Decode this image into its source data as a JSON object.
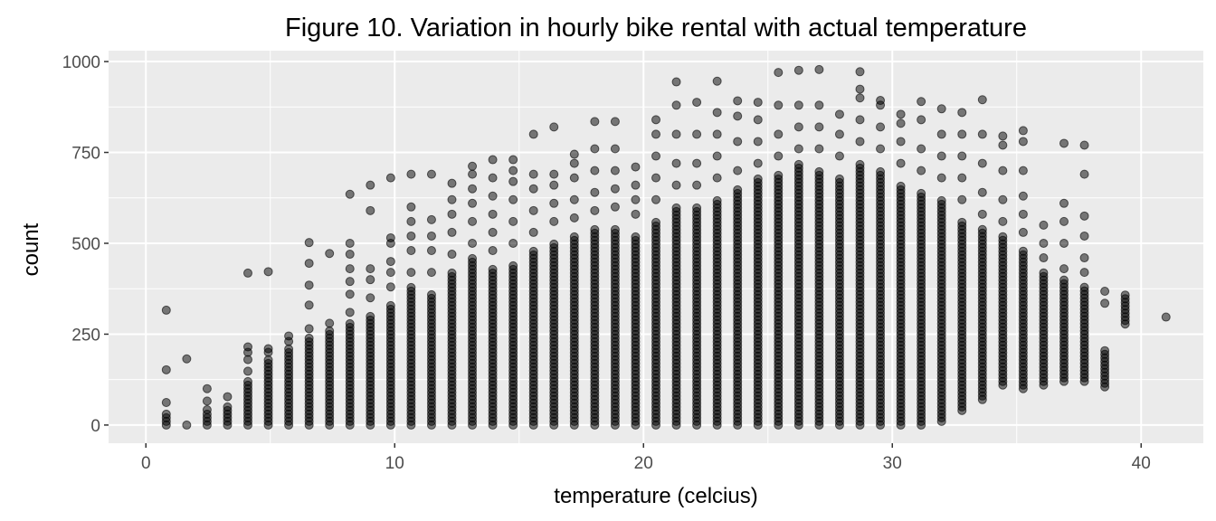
{
  "chart_data": {
    "type": "scatter",
    "title": "Figure 10. Variation in hourly bike rental with actual temperature",
    "xlabel": "temperature (celcius)",
    "ylabel": "count",
    "xlim": [
      -1.5,
      42.5
    ],
    "ylim": [
      -50,
      1030
    ],
    "x_ticks": [
      0,
      10,
      20,
      30,
      40
    ],
    "x_tick_labels": [
      "0",
      "10",
      "20",
      "30",
      "40"
    ],
    "y_ticks": [
      0,
      250,
      500,
      750,
      1000
    ],
    "y_tick_labels": [
      "0",
      "250",
      "500",
      "750",
      "1000"
    ],
    "grid": true,
    "legend": "none",
    "point_color": "#000000",
    "point_alpha": 0.5,
    "panel_background": "#ebebeb",
    "grid_color": "#ffffff",
    "columns": [
      {
        "x": 0.82,
        "min": 0,
        "max": 30,
        "outliers": [
          62,
          152,
          316
        ]
      },
      {
        "x": 1.64,
        "min": 0,
        "max": 8,
        "outliers": [
          182
        ]
      },
      {
        "x": 2.46,
        "min": 0,
        "max": 30,
        "outliers": [
          42,
          66,
          100
        ]
      },
      {
        "x": 3.28,
        "min": 0,
        "max": 55,
        "outliers": [
          78
        ]
      },
      {
        "x": 4.1,
        "min": 0,
        "max": 120,
        "outliers": [
          148,
          180,
          200,
          215,
          418
        ]
      },
      {
        "x": 4.92,
        "min": 0,
        "max": 180,
        "outliers": [
          200,
          210,
          422
        ]
      },
      {
        "x": 5.74,
        "min": 0,
        "max": 210,
        "outliers": [
          230,
          245
        ]
      },
      {
        "x": 6.56,
        "min": 0,
        "max": 240,
        "outliers": [
          265,
          330,
          385,
          445,
          502
        ]
      },
      {
        "x": 7.38,
        "min": 0,
        "max": 260,
        "outliers": [
          280,
          472
        ]
      },
      {
        "x": 8.2,
        "min": 0,
        "max": 280,
        "outliers": [
          310,
          360,
          395,
          430,
          470,
          500,
          635
        ]
      },
      {
        "x": 9.02,
        "min": 0,
        "max": 300,
        "outliers": [
          350,
          400,
          430,
          590,
          660
        ]
      },
      {
        "x": 9.84,
        "min": 0,
        "max": 330,
        "outliers": [
          380,
          420,
          450,
          500,
          515,
          680
        ]
      },
      {
        "x": 10.66,
        "min": 0,
        "max": 380,
        "outliers": [
          420,
          480,
          520,
          560,
          600,
          690
        ]
      },
      {
        "x": 11.48,
        "min": 0,
        "max": 360,
        "outliers": [
          420,
          480,
          520,
          565,
          690
        ]
      },
      {
        "x": 12.3,
        "min": 0,
        "max": 420,
        "outliers": [
          470,
          530,
          580,
          620,
          665
        ]
      },
      {
        "x": 13.12,
        "min": 0,
        "max": 460,
        "outliers": [
          500,
          560,
          610,
          650,
          690,
          712
        ]
      },
      {
        "x": 13.94,
        "min": 0,
        "max": 430,
        "outliers": [
          480,
          530,
          580,
          630,
          680,
          730
        ]
      },
      {
        "x": 14.76,
        "min": 0,
        "max": 440,
        "outliers": [
          500,
          560,
          620,
          670,
          700,
          730
        ]
      },
      {
        "x": 15.58,
        "min": 0,
        "max": 480,
        "outliers": [
          530,
          590,
          650,
          690,
          800
        ]
      },
      {
        "x": 16.4,
        "min": 0,
        "max": 500,
        "outliers": [
          560,
          610,
          660,
          690,
          820
        ]
      },
      {
        "x": 17.22,
        "min": 0,
        "max": 520,
        "outliers": [
          570,
          620,
          680,
          720,
          745
        ]
      },
      {
        "x": 18.04,
        "min": 0,
        "max": 540,
        "outliers": [
          590,
          640,
          700,
          760,
          835
        ]
      },
      {
        "x": 18.86,
        "min": 0,
        "max": 540,
        "outliers": [
          600,
          650,
          700,
          760,
          835
        ]
      },
      {
        "x": 19.68,
        "min": 0,
        "max": 520,
        "outliers": [
          580,
          620,
          660,
          710
        ]
      },
      {
        "x": 20.5,
        "min": 0,
        "max": 560,
        "outliers": [
          620,
          680,
          740,
          800,
          840
        ]
      },
      {
        "x": 21.32,
        "min": 0,
        "max": 600,
        "outliers": [
          660,
          720,
          800,
          880,
          944
        ]
      },
      {
        "x": 22.14,
        "min": 0,
        "max": 600,
        "outliers": [
          660,
          720,
          800,
          888
        ]
      },
      {
        "x": 22.96,
        "min": 0,
        "max": 620,
        "outliers": [
          680,
          740,
          800,
          860,
          946
        ]
      },
      {
        "x": 23.78,
        "min": 0,
        "max": 650,
        "outliers": [
          700,
          780,
          850,
          892
        ]
      },
      {
        "x": 24.6,
        "min": 0,
        "max": 680,
        "outliers": [
          720,
          780,
          840,
          888
        ]
      },
      {
        "x": 25.42,
        "min": 0,
        "max": 690,
        "outliers": [
          740,
          800,
          880,
          970
        ]
      },
      {
        "x": 26.24,
        "min": 0,
        "max": 720,
        "outliers": [
          760,
          820,
          880,
          976
        ]
      },
      {
        "x": 27.06,
        "min": 0,
        "max": 700,
        "outliers": [
          760,
          820,
          880,
          978
        ]
      },
      {
        "x": 27.88,
        "min": 0,
        "max": 680,
        "outliers": [
          740,
          800,
          855
        ]
      },
      {
        "x": 28.7,
        "min": 0,
        "max": 720,
        "outliers": [
          780,
          840,
          900,
          924,
          972
        ]
      },
      {
        "x": 29.52,
        "min": 0,
        "max": 700,
        "outliers": [
          760,
          820,
          880,
          893
        ]
      },
      {
        "x": 30.34,
        "min": 0,
        "max": 660,
        "outliers": [
          720,
          780,
          830,
          855
        ]
      },
      {
        "x": 31.16,
        "min": 0,
        "max": 640,
        "outliers": [
          700,
          760,
          840,
          890
        ]
      },
      {
        "x": 31.98,
        "min": 10,
        "max": 620,
        "outliers": [
          680,
          740,
          800,
          870
        ]
      },
      {
        "x": 32.8,
        "min": 40,
        "max": 560,
        "outliers": [
          620,
          680,
          740,
          800,
          860
        ]
      },
      {
        "x": 33.62,
        "min": 70,
        "max": 540,
        "outliers": [
          580,
          640,
          720,
          800,
          895
        ]
      },
      {
        "x": 34.44,
        "min": 110,
        "max": 520,
        "outliers": [
          560,
          620,
          700,
          770,
          795
        ]
      },
      {
        "x": 35.26,
        "min": 100,
        "max": 480,
        "outliers": [
          530,
          580,
          630,
          700,
          780,
          810
        ]
      },
      {
        "x": 36.08,
        "min": 110,
        "max": 420,
        "outliers": [
          460,
          500,
          550
        ]
      },
      {
        "x": 36.9,
        "min": 120,
        "max": 400,
        "outliers": [
          430,
          500,
          560,
          610,
          775
        ]
      },
      {
        "x": 37.72,
        "min": 120,
        "max": 380,
        "outliers": [
          420,
          460,
          520,
          575,
          690,
          770
        ]
      },
      {
        "x": 38.54,
        "min": 105,
        "max": 210,
        "outliers": [
          335,
          368
        ]
      },
      {
        "x": 39.36,
        "min": 278,
        "max": 362,
        "outliers": []
      },
      {
        "x": 41.0,
        "min": 297,
        "max": 297,
        "outliers": []
      }
    ]
  }
}
